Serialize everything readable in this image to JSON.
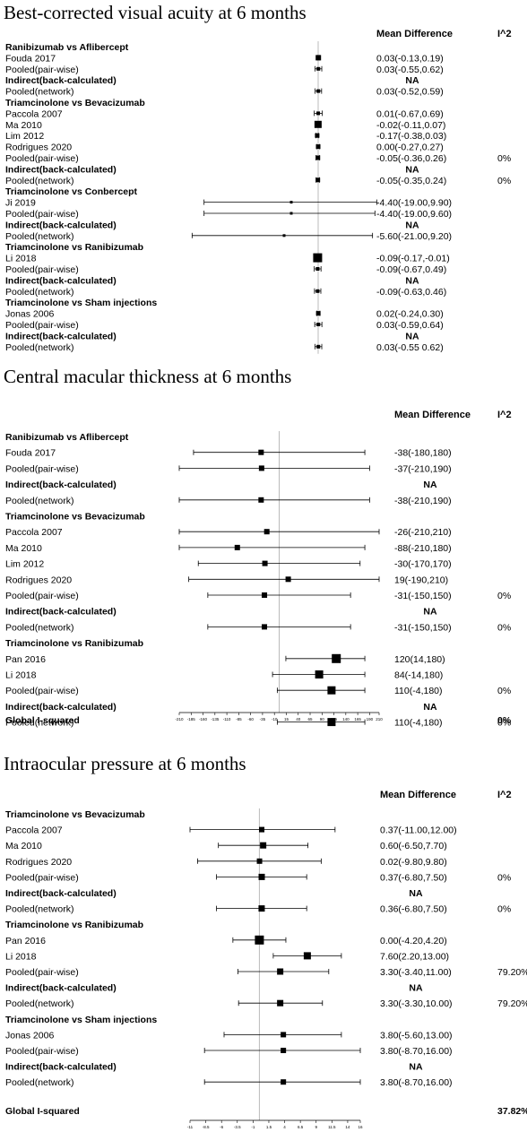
{
  "panels": [
    {
      "title": "Best-corrected visual acuity at 6 months",
      "col_md": "Mean Difference",
      "col_i2": "I^2",
      "axis": {
        "min": -210,
        "max": 210,
        "null": 0,
        "show_ticks": false
      },
      "global": null,
      "rows": [
        {
          "kind": "header",
          "label": "Ranibizumab vs Aflibercept"
        },
        {
          "kind": "study",
          "label": "Fouda 2017",
          "est": 0.03,
          "lo": -0.13,
          "hi": 0.19,
          "ci": "0.03(-0.13,0.19)",
          "i2": "",
          "w": 3
        },
        {
          "kind": "study",
          "label": "Pooled(pair-wise)",
          "est": 0.03,
          "lo": -0.55,
          "hi": 0.62,
          "ci": "0.03(-0.55,0.62)",
          "i2": "",
          "w": 2
        },
        {
          "kind": "indirect",
          "label": "Indirect(back-calculated)",
          "ci": "NA",
          "i2": ""
        },
        {
          "kind": "study",
          "label": "Pooled(network)",
          "est": 0.03,
          "lo": -0.52,
          "hi": 0.59,
          "ci": "0.03(-0.52,0.59)",
          "i2": "",
          "w": 2
        },
        {
          "kind": "header",
          "label": "Triamcinolone vs Bevacizumab"
        },
        {
          "kind": "study",
          "label": "Paccola 2007",
          "est": 0.01,
          "lo": -0.67,
          "hi": 0.69,
          "ci": "0.01(-0.67,0.69)",
          "i2": "",
          "w": 2
        },
        {
          "kind": "study",
          "label": "Ma 2010",
          "est": -0.02,
          "lo": -0.11,
          "hi": 0.07,
          "ci": "-0.02(-0.11,0.07)",
          "i2": "",
          "w": 4
        },
        {
          "kind": "study",
          "label": "Lim 2012",
          "est": -0.17,
          "lo": -0.38,
          "hi": 0.03,
          "ci": "-0.17(-0.38,0.03)",
          "i2": "",
          "w": 2.5
        },
        {
          "kind": "study",
          "label": "Rodrigues 2020",
          "est": 0.0,
          "lo": -0.27,
          "hi": 0.27,
          "ci": "0.00(-0.27,0.27)",
          "i2": "",
          "w": 2.5
        },
        {
          "kind": "study",
          "label": "Pooled(pair-wise)",
          "est": -0.05,
          "lo": -0.36,
          "hi": 0.26,
          "ci": "-0.05(-0.36,0.26)",
          "i2": "0%",
          "w": 2.5
        },
        {
          "kind": "indirect",
          "label": "Indirect(back-calculated)",
          "ci": "NA",
          "i2": ""
        },
        {
          "kind": "study",
          "label": "Pooled(network)",
          "est": -0.05,
          "lo": -0.35,
          "hi": 0.24,
          "ci": "-0.05(-0.35,0.24)",
          "i2": "0%",
          "w": 2.5
        },
        {
          "kind": "header",
          "label": "Triamcinolone vs Conbercept"
        },
        {
          "kind": "study",
          "label": "Ji 2019",
          "est": -4.4,
          "lo": -19.0,
          "hi": 9.9,
          "ci": "-4.40(-19.00,9.90)",
          "i2": "",
          "w": 1.5
        },
        {
          "kind": "study",
          "label": "Pooled(pair-wise)",
          "est": -4.4,
          "lo": -19.0,
          "hi": 9.6,
          "ci": "-4.40(-19.00,9.60)",
          "i2": "",
          "w": 1.5
        },
        {
          "kind": "indirect",
          "label": "Indirect(back-calculated)",
          "ci": "NA",
          "i2": ""
        },
        {
          "kind": "study",
          "label": "Pooled(network)",
          "est": -5.6,
          "lo": -21.0,
          "hi": 9.2,
          "ci": "-5.60(-21.00,9.20)",
          "i2": "",
          "w": 1.5
        },
        {
          "kind": "header",
          "label": "Triamcinolone vs Ranibizumab"
        },
        {
          "kind": "study",
          "label": "Li 2018",
          "est": -0.09,
          "lo": -0.17,
          "hi": -0.01,
          "ci": "-0.09(-0.17,-0.01)",
          "i2": "",
          "w": 5
        },
        {
          "kind": "study",
          "label": "Pooled(pair-wise)",
          "est": -0.09,
          "lo": -0.67,
          "hi": 0.49,
          "ci": "-0.09(-0.67,0.49)",
          "i2": "",
          "w": 2
        },
        {
          "kind": "indirect",
          "label": "Indirect(back-calculated)",
          "ci": "NA",
          "i2": ""
        },
        {
          "kind": "study",
          "label": "Pooled(network)",
          "est": -0.09,
          "lo": -0.63,
          "hi": 0.46,
          "ci": "-0.09(-0.63,0.46)",
          "i2": "",
          "w": 2
        },
        {
          "kind": "header",
          "label": "Triamcinolone vs Sham injections"
        },
        {
          "kind": "study",
          "label": "Jonas 2006",
          "est": 0.02,
          "lo": -0.24,
          "hi": 0.3,
          "ci": "0.02(-0.24,0.30)",
          "i2": "",
          "w": 2.5
        },
        {
          "kind": "study",
          "label": "Pooled(pair-wise)",
          "est": 0.03,
          "lo": -0.59,
          "hi": 0.64,
          "ci": "0.03(-0.59,0.64)",
          "i2": "",
          "w": 2
        },
        {
          "kind": "indirect",
          "label": "Indirect(back-calculated)",
          "ci": "NA",
          "i2": ""
        },
        {
          "kind": "study",
          "label": "Pooled(network)",
          "est": 0.03,
          "lo": -0.55,
          "hi": 0.62,
          "ci": "0.03(-0.55 0.62)",
          "i2": "",
          "w": 2
        }
      ]
    },
    {
      "title": "Central macular thickness at 6 months",
      "col_md": "Mean Difference",
      "col_i2": "I^2",
      "axis": {
        "min": -210,
        "max": 210,
        "null": 0,
        "show_ticks": true,
        "ticks": [
          "-210",
          "-185",
          "-160",
          "-135",
          "-110",
          "-85",
          "-60",
          "-35",
          "-10",
          "15",
          "40",
          "65",
          "90",
          "115",
          "140",
          "165",
          "190",
          "210"
        ]
      },
      "global": {
        "label": "Global I-squared",
        "value": "0%"
      },
      "rows": [
        {
          "kind": "header",
          "label": "Ranibizumab vs Aflibercept"
        },
        {
          "kind": "study",
          "label": "Fouda 2017",
          "est": -38,
          "lo": -180,
          "hi": 180,
          "ci": "-38(-180,180)",
          "i2": "",
          "w": 3
        },
        {
          "kind": "study",
          "label": "Pooled(pair-wise)",
          "est": -37,
          "lo": -210,
          "hi": 190,
          "ci": "-37(-210,190)",
          "i2": "",
          "w": 3
        },
        {
          "kind": "indirect",
          "label": "Indirect(back-calculated)",
          "ci": "NA",
          "i2": ""
        },
        {
          "kind": "study",
          "label": "Pooled(network)",
          "est": -38,
          "lo": -210,
          "hi": 190,
          "ci": "-38(-210,190)",
          "i2": "",
          "w": 3
        },
        {
          "kind": "header",
          "label": "Triamcinolone vs Bevacizumab"
        },
        {
          "kind": "study",
          "label": "Paccola 2007",
          "est": -26,
          "lo": -210,
          "hi": 210,
          "ci": "-26(-210,210)",
          "i2": "",
          "w": 3
        },
        {
          "kind": "study",
          "label": "Ma 2010",
          "est": -88,
          "lo": -210,
          "hi": 180,
          "ci": "-88(-210,180)",
          "i2": "",
          "w": 3
        },
        {
          "kind": "study",
          "label": "Lim 2012",
          "est": -30,
          "lo": -170,
          "hi": 170,
          "ci": "-30(-170,170)",
          "i2": "",
          "w": 3
        },
        {
          "kind": "study",
          "label": "Rodrigues 2020",
          "est": 19,
          "lo": -190,
          "hi": 210,
          "ci": "19(-190,210)",
          "i2": "",
          "w": 3
        },
        {
          "kind": "study",
          "label": "Pooled(pair-wise)",
          "est": -31,
          "lo": -150,
          "hi": 150,
          "ci": "-31(-150,150)",
          "i2": "0%",
          "w": 3
        },
        {
          "kind": "indirect",
          "label": "Indirect(back-calculated)",
          "ci": "NA",
          "i2": ""
        },
        {
          "kind": "study",
          "label": "Pooled(network)",
          "est": -31,
          "lo": -150,
          "hi": 150,
          "ci": "-31(-150,150)",
          "i2": "0%",
          "w": 3
        },
        {
          "kind": "header",
          "label": "Triamcinolone vs Ranibizumab"
        },
        {
          "kind": "study",
          "label": "Pan 2016",
          "est": 120,
          "lo": 14,
          "hi": 180,
          "ci": "120(14,180)",
          "i2": "",
          "w": 5
        },
        {
          "kind": "study",
          "label": "Li 2018",
          "est": 84,
          "lo": -14,
          "hi": 180,
          "ci": "84(-14,180)",
          "i2": "",
          "w": 4.5
        },
        {
          "kind": "study",
          "label": "Pooled(pair-wise)",
          "est": 110,
          "lo": -4,
          "hi": 180,
          "ci": "110(-4,180)",
          "i2": "0%",
          "w": 4.5
        },
        {
          "kind": "indirect",
          "label": "Indirect(back-calculated)",
          "ci": "NA",
          "i2": ""
        },
        {
          "kind": "study",
          "label": "Pooled(network)",
          "est": 110,
          "lo": -4,
          "hi": 180,
          "ci": "110(-4,180)",
          "i2": "0%",
          "w": 4.5
        }
      ]
    },
    {
      "title": "Intraocular pressure at 6 months",
      "col_md": "Mean Difference",
      "col_i2": "I^2",
      "axis": {
        "min": -11,
        "max": 16,
        "null": 0,
        "show_ticks": true,
        "ticks": [
          "-11",
          "-8.5",
          "-6",
          "-3.5",
          "-1",
          "1.5",
          "4",
          "6.5",
          "9",
          "11.5",
          "14",
          "16"
        ]
      },
      "global": {
        "label": "Global I-squared",
        "value": "37.82%"
      },
      "rows": [
        {
          "kind": "header",
          "label": "Triamcinolone vs Bevacizumab"
        },
        {
          "kind": "study",
          "label": "Paccola 2007",
          "est": 0.37,
          "lo": -11.0,
          "hi": 12.0,
          "ci": "0.37(-11.00,12.00)",
          "i2": "",
          "w": 3
        },
        {
          "kind": "study",
          "label": "Ma 2010",
          "est": 0.6,
          "lo": -6.5,
          "hi": 7.7,
          "ci": "0.60(-6.50,7.70)",
          "i2": "",
          "w": 3.5
        },
        {
          "kind": "study",
          "label": "Rodrigues 2020",
          "est": 0.02,
          "lo": -9.8,
          "hi": 9.8,
          "ci": "0.02(-9.80,9.80)",
          "i2": "",
          "w": 3
        },
        {
          "kind": "study",
          "label": "Pooled(pair-wise)",
          "est": 0.37,
          "lo": -6.8,
          "hi": 7.5,
          "ci": "0.37(-6.80,7.50)",
          "i2": "0%",
          "w": 3.5
        },
        {
          "kind": "indirect",
          "label": "Indirect(back-calculated)",
          "ci": "NA",
          "i2": ""
        },
        {
          "kind": "study",
          "label": "Pooled(network)",
          "est": 0.36,
          "lo": -6.8,
          "hi": 7.5,
          "ci": "0.36(-6.80,7.50)",
          "i2": "0%",
          "w": 3.5
        },
        {
          "kind": "header",
          "label": "Triamcinolone vs Ranibizumab"
        },
        {
          "kind": "study",
          "label": "Pan 2016",
          "est": 0.0,
          "lo": -4.2,
          "hi": 4.2,
          "ci": "0.00(-4.20,4.20)",
          "i2": "",
          "w": 5
        },
        {
          "kind": "study",
          "label": "Li 2018",
          "est": 7.6,
          "lo": 2.2,
          "hi": 13.0,
          "ci": "7.60(2.20,13.00)",
          "i2": "",
          "w": 4
        },
        {
          "kind": "study",
          "label": "Pooled(pair-wise)",
          "est": 3.3,
          "lo": -3.4,
          "hi": 11.0,
          "ci": "3.30(-3.40,11.00)",
          "i2": "79.20%",
          "w": 3.5
        },
        {
          "kind": "indirect",
          "label": "Indirect(back-calculated)",
          "ci": "NA",
          "i2": ""
        },
        {
          "kind": "study",
          "label": "Pooled(network)",
          "est": 3.3,
          "lo": -3.3,
          "hi": 10.0,
          "ci": "3.30(-3.30,10.00)",
          "i2": "79.20%",
          "w": 3.5
        },
        {
          "kind": "header",
          "label": "Triamcinolone vs Sham injections"
        },
        {
          "kind": "study",
          "label": "Jonas 2006",
          "est": 3.8,
          "lo": -5.6,
          "hi": 13.0,
          "ci": "3.80(-5.60,13.00)",
          "i2": "",
          "w": 3
        },
        {
          "kind": "study",
          "label": "Pooled(pair-wise)",
          "est": 3.8,
          "lo": -8.7,
          "hi": 16.0,
          "ci": "3.80(-8.70,16.00)",
          "i2": "",
          "w": 3
        },
        {
          "kind": "indirect",
          "label": "Indirect(back-calculated)",
          "ci": "NA",
          "i2": ""
        },
        {
          "kind": "study",
          "label": "Pooled(network)",
          "est": 3.8,
          "lo": -8.7,
          "hi": 16.0,
          "ci": "3.80(-8.70,16.00)",
          "i2": "",
          "w": 3
        }
      ]
    }
  ]
}
